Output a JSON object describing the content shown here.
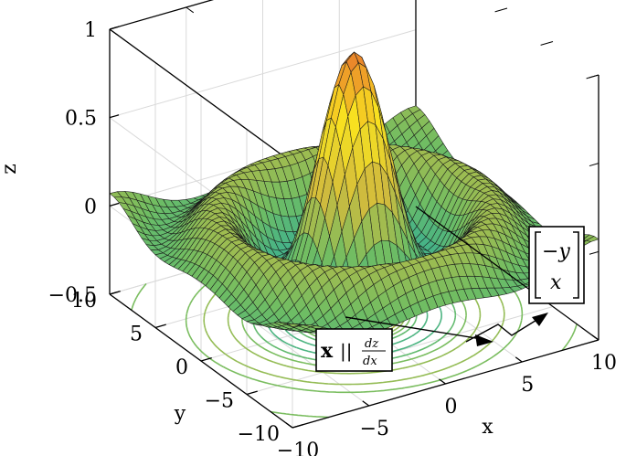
{
  "chart_data": {
    "type": "surface",
    "function": "z = sin(r)/r, r = sqrt(x^2 + y^2)",
    "x_range": [
      -10,
      10
    ],
    "y_range": [
      -10,
      10
    ],
    "zlim": [
      -0.5,
      1
    ],
    "grid": true,
    "peak": {
      "x": 0,
      "y": 0,
      "z": 1
    },
    "contour_levels": [
      -0.2,
      -0.1,
      0,
      0.1,
      0.2,
      0.3,
      0.4,
      0.5,
      0.6,
      0.7,
      0.8,
      0.9
    ],
    "axes": {
      "x": {
        "label": "x",
        "ticks": [
          "−10",
          "−5",
          "0",
          "5",
          "10"
        ]
      },
      "y": {
        "label": "y",
        "ticks": [
          "−10",
          "−5",
          "0",
          "5",
          "10"
        ]
      },
      "z": {
        "label": "z",
        "ticks": [
          "−0.5",
          "0",
          "0.5",
          "1"
        ]
      }
    },
    "annotations": {
      "gradient_box": {
        "bold": "x",
        "bars": "||",
        "num": "dz",
        "den": "dx"
      },
      "matrix_box": {
        "top": "−y",
        "bottom": "x"
      }
    },
    "colormap": [
      "#3e26a8",
      "#2f7ec8",
      "#1aa8ad",
      "#6fbd63",
      "#d3bb3c",
      "#f9e51f",
      "#e87c2c"
    ]
  }
}
